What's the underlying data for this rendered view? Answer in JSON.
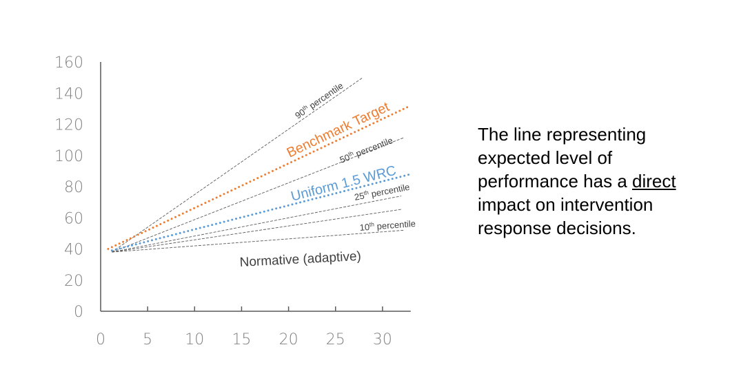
{
  "chart_data": {
    "type": "line",
    "title": "",
    "xlabel": "",
    "ylabel": "",
    "xlim": [
      0,
      33
    ],
    "ylim": [
      0,
      160
    ],
    "x_ticks": [
      "0",
      "5",
      "10",
      "15",
      "20",
      "25",
      "30"
    ],
    "y_ticks": [
      "0",
      "20",
      "40",
      "60",
      "80",
      "100",
      "120",
      "140",
      "160"
    ],
    "grid": false,
    "series": [
      {
        "name": "90th percentile",
        "label_main": "90",
        "label_sup": "th",
        "label_rest": " percentile",
        "style": "dashed",
        "color": "#595959",
        "x": [
          1.2,
          27.9
        ],
        "y": [
          38,
          150
        ]
      },
      {
        "name": "Benchmark Target",
        "style": "dotted",
        "color": "#ED7D31",
        "x": [
          0.8,
          33
        ],
        "y": [
          40,
          132
        ]
      },
      {
        "name": "50th percentile",
        "label_main": "50",
        "label_sup": "th",
        "label_rest": " percentile",
        "style": "dashed",
        "color": "#595959",
        "x": [
          1.2,
          32.3
        ],
        "y": [
          38,
          111.5
        ]
      },
      {
        "name": "Uniform 1.5 WRC",
        "style": "dotted",
        "color": "#5B9BD5",
        "x": [
          1.2,
          33
        ],
        "y": [
          39,
          88
        ]
      },
      {
        "name": "25th percentile",
        "label_main": "25",
        "label_sup": "th",
        "label_rest": " percentile",
        "style": "dashed",
        "color": "#595959",
        "x": [
          1.2,
          32
        ],
        "y": [
          38,
          74
        ]
      },
      {
        "name": "",
        "style": "dashed",
        "color": "#595959",
        "x": [
          1.2,
          32.1
        ],
        "y": [
          38,
          65.5
        ]
      },
      {
        "name": "10th percentile",
        "label_main": "10",
        "label_sup": "th",
        "label_rest": " percentile",
        "style": "dashed",
        "color": "#595959",
        "x": [
          1.2,
          32.3
        ],
        "y": [
          38,
          52
        ]
      }
    ],
    "annotations": [
      "Normative (adaptive)"
    ]
  },
  "callout": {
    "line1": "The line representing",
    "line2": "expected level of",
    "line3_pre": "performance has a ",
    "line3_emph": "direct",
    "line4": "impact on intervention",
    "line5": "response decisions."
  }
}
